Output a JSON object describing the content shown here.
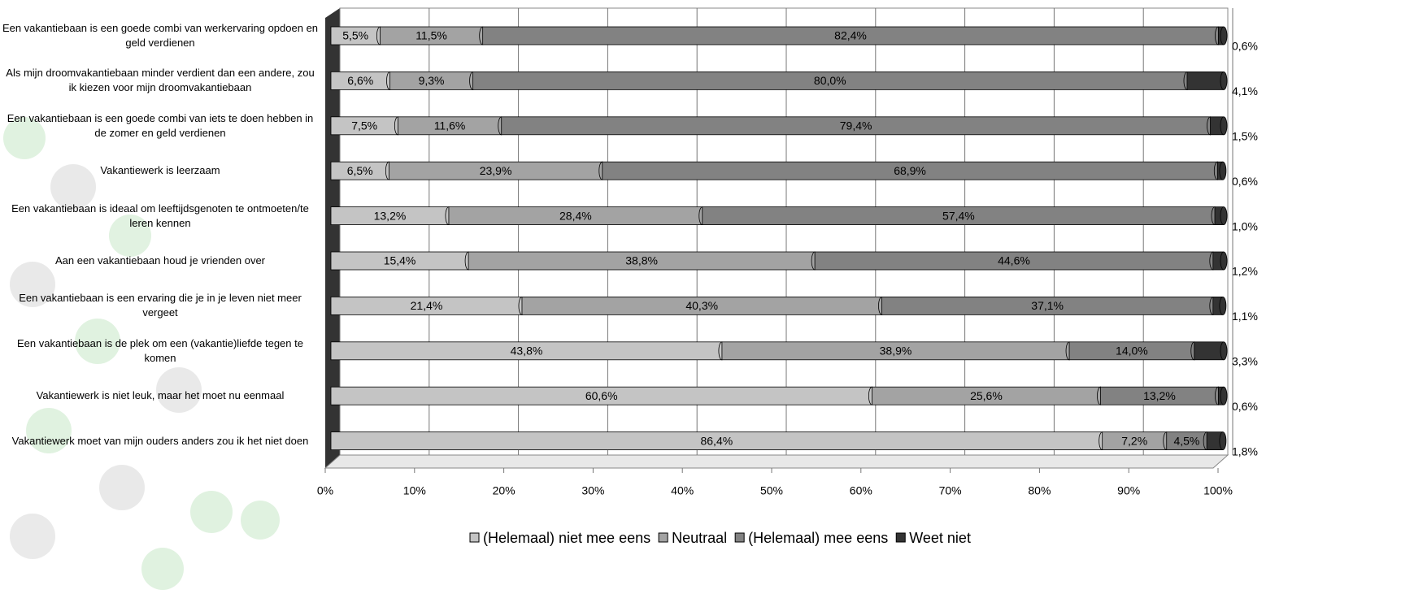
{
  "chart_data": {
    "type": "stacked-bar-horizontal",
    "categories": [
      "Een vakantiebaan is een goede combi van werkervaring opdoen en geld verdienen",
      "Als mijn droomvakantiebaan minder verdient dan een andere, zou ik kiezen voor mijn droomvakantiebaan",
      "Een vakantiebaan is een goede combi van iets te doen hebben in de zomer en geld verdienen",
      "Vakantiewerk is leerzaam",
      "Een vakantiebaan is ideaal om leeftijdsgenoten te ontmoeten/te leren kennen",
      "Aan een vakantiebaan houd je vrienden over",
      "Een vakantiebaan is een ervaring die je in je leven niet meer vergeet",
      "Een vakantiebaan is de plek om een (vakantie)liefde tegen te komen",
      "Vakantiewerk is niet leuk, maar het moet nu eenmaal",
      "Vakantiewerk moet van mijn ouders anders zou ik het niet doen"
    ],
    "series": [
      {
        "name": "(Helemaal) niet mee eens",
        "color": "#c4c4c4",
        "values": [
          5.5,
          6.6,
          7.5,
          6.5,
          13.2,
          15.4,
          21.4,
          43.8,
          60.6,
          86.4
        ],
        "value_labels": [
          "5,5%",
          "6,6%",
          "7,5%",
          "6,5%",
          "13,2%",
          "15,4%",
          "21,4%",
          "43,8%",
          "60,6%",
          "86,4%"
        ]
      },
      {
        "name": "Neutraal",
        "color": "#a3a3a3",
        "values": [
          11.5,
          9.3,
          11.6,
          23.9,
          28.4,
          38.8,
          40.3,
          38.9,
          25.6,
          7.2
        ],
        "value_labels": [
          "11,5%",
          "9,3%",
          "11,6%",
          "23,9%",
          "28,4%",
          "38,8%",
          "40,3%",
          "38,9%",
          "25,6%",
          "7,2%"
        ]
      },
      {
        "name": "(Helemaal) mee eens",
        "color": "#828282",
        "values": [
          82.4,
          80.0,
          79.4,
          68.9,
          57.4,
          44.6,
          37.1,
          14.0,
          13.2,
          4.5
        ],
        "value_labels": [
          "82,4%",
          "80,0%",
          "79,4%",
          "68,9%",
          "57,4%",
          "44,6%",
          "37,1%",
          "14,0%",
          "13,2%",
          "4,5%"
        ]
      },
      {
        "name": "Weet niet",
        "color": "#333333",
        "values": [
          0.6,
          4.1,
          1.5,
          0.6,
          1.0,
          1.2,
          1.1,
          3.3,
          0.6,
          1.8
        ],
        "value_labels": [
          "0,6%",
          "4,1%",
          "1,5%",
          "0,6%",
          "1,0%",
          "1,2%",
          "1,1%",
          "3,3%",
          "0,6%",
          "1,8%"
        ]
      }
    ],
    "xlim": [
      0,
      100
    ],
    "xticks": [
      {
        "value": 0,
        "label": "0%"
      },
      {
        "value": 10,
        "label": "10%"
      },
      {
        "value": 20,
        "label": "20%"
      },
      {
        "value": 30,
        "label": "30%"
      },
      {
        "value": 40,
        "label": "40%"
      },
      {
        "value": 50,
        "label": "50%"
      },
      {
        "value": 60,
        "label": "60%"
      },
      {
        "value": 70,
        "label": "70%"
      },
      {
        "value": 80,
        "label": "80%"
      },
      {
        "value": 90,
        "label": "90%"
      },
      {
        "value": 100,
        "label": "100%"
      }
    ],
    "grid": true,
    "legend": "bottom"
  }
}
